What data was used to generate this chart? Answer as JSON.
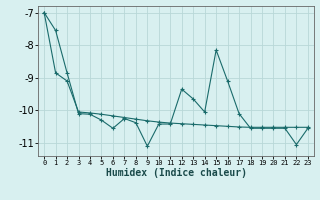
{
  "xlabel": "Humidex (Indice chaleur)",
  "background_color": "#d8f0f0",
  "grid_color": "#b8d8d8",
  "line_color": "#1a6b6b",
  "x": [
    0,
    1,
    2,
    3,
    4,
    5,
    6,
    7,
    8,
    9,
    10,
    11,
    12,
    13,
    14,
    15,
    16,
    17,
    18,
    19,
    20,
    21,
    22,
    23
  ],
  "series1": [
    -7.0,
    -7.55,
    -8.85,
    -10.1,
    -10.12,
    -10.3,
    -10.55,
    -10.25,
    -10.38,
    -11.1,
    -10.42,
    -10.42,
    -9.35,
    -9.65,
    -10.05,
    -8.15,
    -9.1,
    -10.1,
    -10.55,
    -10.55,
    -10.55,
    -10.55,
    -11.05,
    -10.55
  ],
  "series2": [
    -7.0,
    -8.85,
    -9.1,
    -10.05,
    -10.08,
    -10.12,
    -10.17,
    -10.22,
    -10.27,
    -10.32,
    -10.36,
    -10.39,
    -10.41,
    -10.43,
    -10.45,
    -10.47,
    -10.49,
    -10.51,
    -10.52,
    -10.52,
    -10.52,
    -10.52,
    -10.52,
    -10.52
  ],
  "ylim": [
    -11.4,
    -6.8
  ],
  "yticks": [
    -11,
    -10,
    -9,
    -8,
    -7
  ],
  "xticks": [
    0,
    1,
    2,
    3,
    4,
    5,
    6,
    7,
    8,
    9,
    10,
    11,
    12,
    13,
    14,
    15,
    16,
    17,
    18,
    19,
    20,
    21,
    22,
    23
  ],
  "figsize": [
    3.2,
    2.0
  ],
  "dpi": 100
}
